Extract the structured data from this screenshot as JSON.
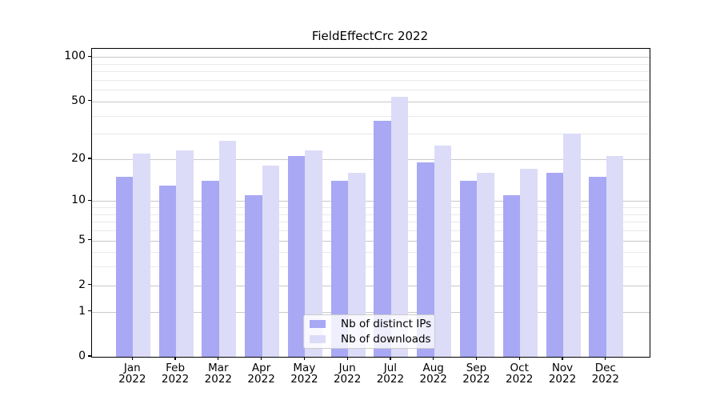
{
  "title": "FieldEffectCrc 2022",
  "chart_data": {
    "type": "bar",
    "title": "FieldEffectCrc 2022",
    "categories": [
      "Jan 2022",
      "Feb 2022",
      "Mar 2022",
      "Apr 2022",
      "May 2022",
      "Jun 2022",
      "Jul 2022",
      "Aug 2022",
      "Sep 2022",
      "Oct 2022",
      "Nov 2022",
      "Dec 2022"
    ],
    "x_tick_months": [
      "Jan",
      "Feb",
      "Mar",
      "Apr",
      "May",
      "Jun",
      "Jul",
      "Aug",
      "Sep",
      "Oct",
      "Nov",
      "Dec"
    ],
    "x_tick_year": "2022",
    "series": [
      {
        "key": "distinct-ips",
        "name": "Nb of distinct IPs",
        "color": "#a8a8f5",
        "values": [
          15,
          13,
          14,
          11,
          21,
          14,
          37,
          19,
          14,
          11,
          16,
          15
        ]
      },
      {
        "key": "downloads",
        "name": "Nb of downloads",
        "color": "#dcdcf8",
        "values": [
          22,
          23,
          27,
          18,
          23,
          16,
          54,
          25,
          16,
          17,
          30,
          21
        ]
      }
    ],
    "y_axis": {
      "scale": "log1p",
      "tick_values": [
        0,
        1,
        2,
        5,
        10,
        20,
        50,
        100
      ],
      "tick_labels": [
        "0",
        "1",
        "2",
        "5",
        "10",
        "20",
        "50",
        "100"
      ],
      "minor_gridline_values": [
        3,
        4,
        6,
        7,
        8,
        9,
        30,
        40,
        60,
        70,
        80,
        90
      ],
      "range_top_value": 114.6,
      "grid": true
    },
    "xlabel": "",
    "ylabel": "",
    "legend_position": "lower center"
  },
  "legend": {
    "labels": [
      "Nb of distinct IPs",
      "Nb of downloads"
    ]
  },
  "colors": {
    "bar_distinct_ips": "#a8a8f5",
    "bar_downloads": "#dcdcf8",
    "grid_major": "#c8c8c8",
    "grid_minor": "#e9e9e9",
    "spine": "#000000",
    "legend_border": "#cccccc",
    "background": "#ffffff"
  }
}
